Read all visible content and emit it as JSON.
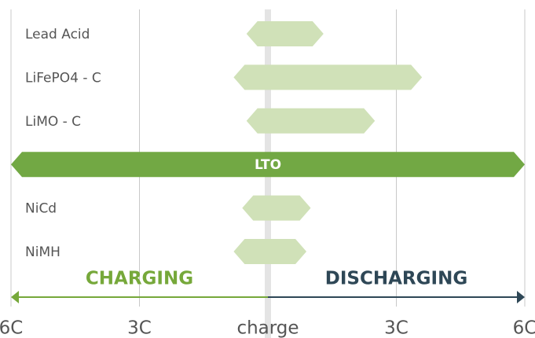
{
  "chart_data": {
    "type": "range-bar",
    "categories": [
      "Lead Acid",
      "LiFePO4 - C",
      "LiMO - C",
      "LTO",
      "NiCd",
      "NiMH"
    ],
    "series": [
      {
        "name": "CHARGING",
        "color": "#76a83a",
        "values": [
          -0.5,
          -0.8,
          -0.5,
          -6,
          -0.6,
          -0.8
        ]
      },
      {
        "name": "DISCHARGING",
        "color": "#2e4756",
        "values": [
          1.3,
          3.6,
          2.5,
          6,
          1.0,
          0.9
        ]
      }
    ],
    "bar_colors": [
      "#d0e1b8",
      "#d0e1b8",
      "#d0e1b8",
      "#72a844",
      "#d0e1b8",
      "#d0e1b8"
    ],
    "label_position": [
      "left",
      "left",
      "left",
      "center",
      "left",
      "left"
    ],
    "xlim": [
      -6,
      6
    ],
    "xticks": [
      {
        "value": -6,
        "label": "6C"
      },
      {
        "value": -3,
        "label": "3C"
      },
      {
        "value": 0,
        "label": "charge"
      },
      {
        "value": 3,
        "label": "3C"
      },
      {
        "value": 6,
        "label": "6C"
      }
    ],
    "grid": true
  }
}
